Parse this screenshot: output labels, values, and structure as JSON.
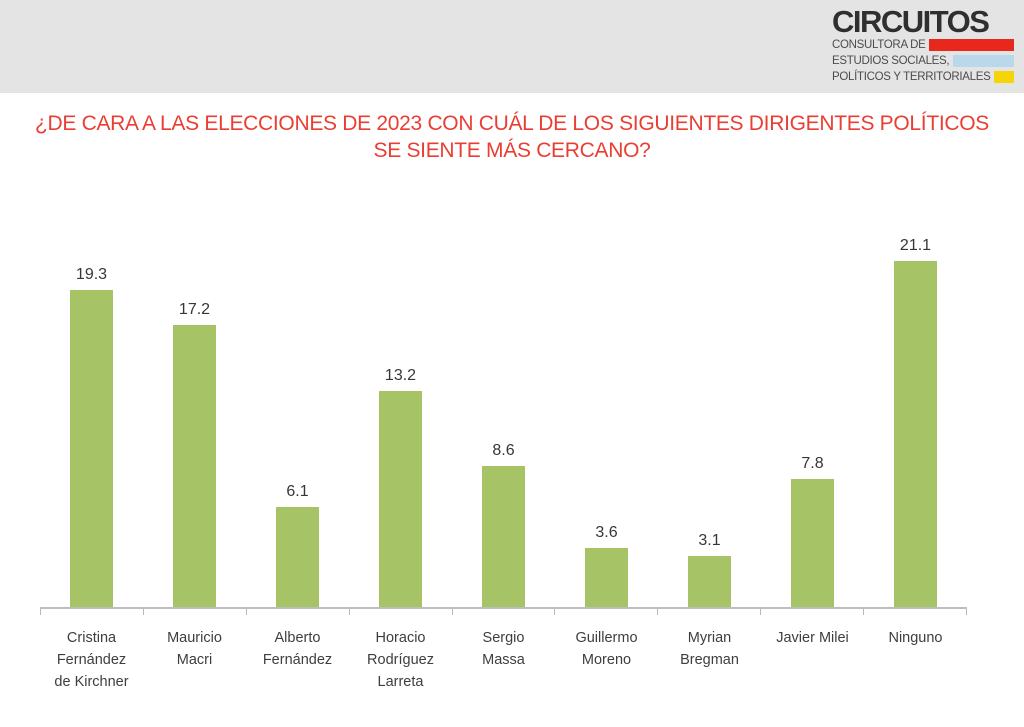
{
  "header": {
    "logo": {
      "title": "CIRCUITOS",
      "lines": [
        {
          "text": "CONSULTORA DE",
          "bar_color": "#e8271d"
        },
        {
          "text": "ESTUDIOS SOCIALES,",
          "bar_color": "#b9d8ec"
        },
        {
          "text": "POLÍTICOS Y TERRITORIALES",
          "bar_color": "#f3d508"
        }
      ]
    }
  },
  "title": {
    "line1": "¿DE CARA A LAS ELECCIONES DE 2023 CON CUÁL DE LOS SIGUIENTES DIRIGENTES POLÍTICOS",
    "line2": "SE SIENTE MÁS CERCANO?"
  },
  "chart_data": {
    "type": "bar",
    "categories": [
      "Cristina Fernández de Kirchner",
      "Mauricio Macri",
      "Alberto Fernández",
      "Horacio Rodríguez Larreta",
      "Sergio Massa",
      "Guillermo Moreno",
      "Myrian Bregman",
      "Javier Milei",
      "Ninguno"
    ],
    "category_lines": [
      "Cristina\nFernández\nde Kirchner",
      "Mauricio\nMacri",
      "Alberto\nFernández",
      "Horacio\nRodríguez\nLarreta",
      "Sergio\nMassa",
      "Guillermo\nMoreno",
      "Myrian\nBregman",
      "Javier Milei",
      "Ninguno"
    ],
    "values": [
      19.3,
      17.2,
      6.1,
      13.2,
      8.6,
      3.6,
      3.1,
      7.8,
      21.1
    ],
    "title": "¿DE CARA A LAS ELECCIONES DE 2023 CON CUÁL DE LOS SIGUIENTES DIRIGENTES POLÍTICOS SE SIENTE MÁS CERCANO?",
    "xlabel": "",
    "ylabel": "",
    "ylim": [
      0,
      22
    ],
    "grid": false,
    "legend": false,
    "bar_color": "#a6c366",
    "value_label_color": "#363636",
    "axis_color": "#bdbdbd",
    "title_color": "#ea3e33"
  }
}
